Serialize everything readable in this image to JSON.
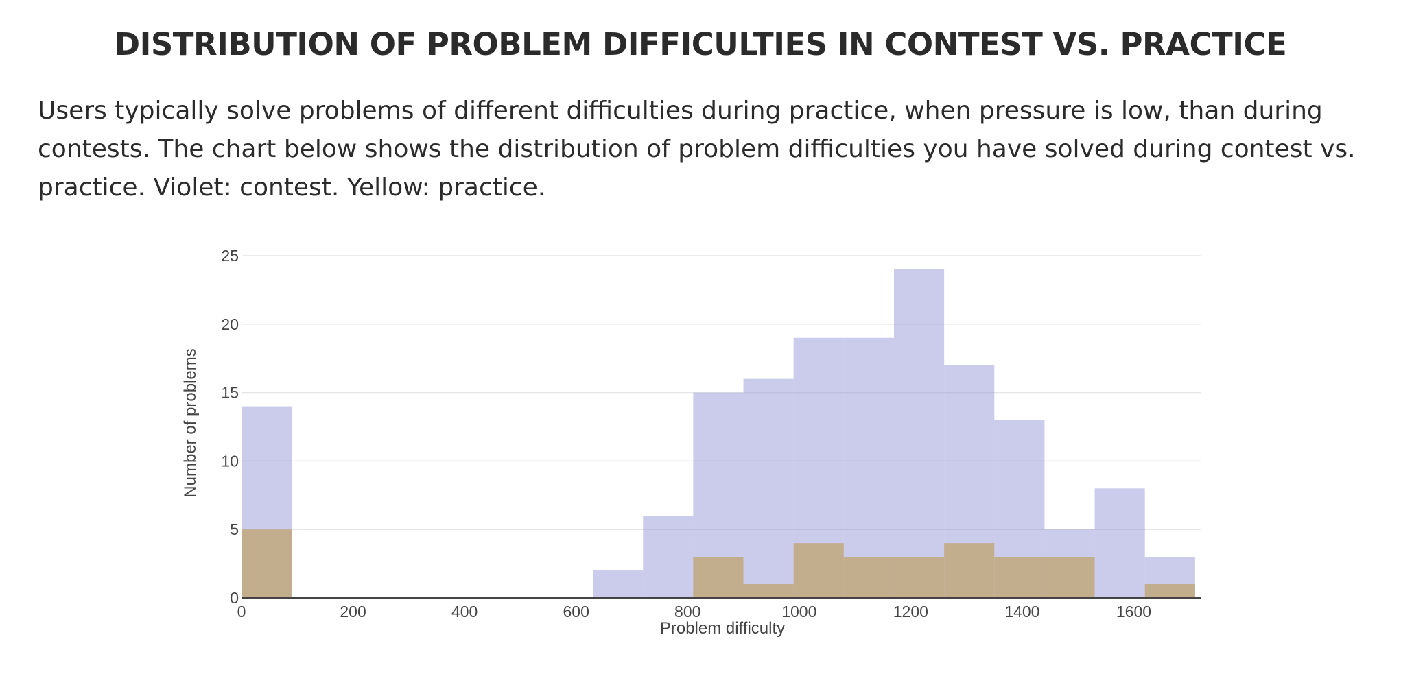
{
  "page": {
    "title": "DISTRIBUTION OF PROBLEM DIFFICULTIES IN CONTEST VS. PRACTICE",
    "description": "Users typically solve problems of different difficulties during practice, when pressure is low, than during contests. The chart below shows the distribution of problem difficulties you have solved during contest vs. practice. Violet: contest. Yellow: practice."
  },
  "chart_data": {
    "type": "bar",
    "xlabel": "Problem difficulty",
    "ylabel": "Number of problems",
    "xlim": [
      0,
      1720
    ],
    "ylim": [
      0,
      25
    ],
    "xticks": [
      0,
      200,
      400,
      600,
      800,
      1000,
      1200,
      1400,
      1600
    ],
    "yticks": [
      0,
      5,
      10,
      15,
      20,
      25
    ],
    "grid": true,
    "bin_width": 90,
    "series": [
      {
        "color": "#8c8cd2",
        "opacity": 0.45,
        "bins": [
          {
            "x0": 0,
            "value": 14
          },
          {
            "x0": 630,
            "value": 2
          },
          {
            "x0": 720,
            "value": 6
          },
          {
            "x0": 810,
            "value": 15
          },
          {
            "x0": 900,
            "value": 16
          },
          {
            "x0": 990,
            "value": 19
          },
          {
            "x0": 1080,
            "value": 19
          },
          {
            "x0": 1170,
            "value": 24
          },
          {
            "x0": 1260,
            "value": 17
          },
          {
            "x0": 1350,
            "value": 13
          },
          {
            "x0": 1440,
            "value": 5
          },
          {
            "x0": 1530,
            "value": 8
          },
          {
            "x0": 1620,
            "value": 3
          }
        ]
      },
      {
        "color": "#c2ad8d",
        "opacity": 1,
        "bins": [
          {
            "x0": 0,
            "value": 5
          },
          {
            "x0": 810,
            "value": 3
          },
          {
            "x0": 900,
            "value": 1
          },
          {
            "x0": 990,
            "value": 4
          },
          {
            "x0": 1080,
            "value": 3
          },
          {
            "x0": 1170,
            "value": 3
          },
          {
            "x0": 1260,
            "value": 4
          },
          {
            "x0": 1350,
            "value": 3
          },
          {
            "x0": 1440,
            "value": 3
          },
          {
            "x0": 1620,
            "value": 1
          }
        ]
      }
    ]
  }
}
